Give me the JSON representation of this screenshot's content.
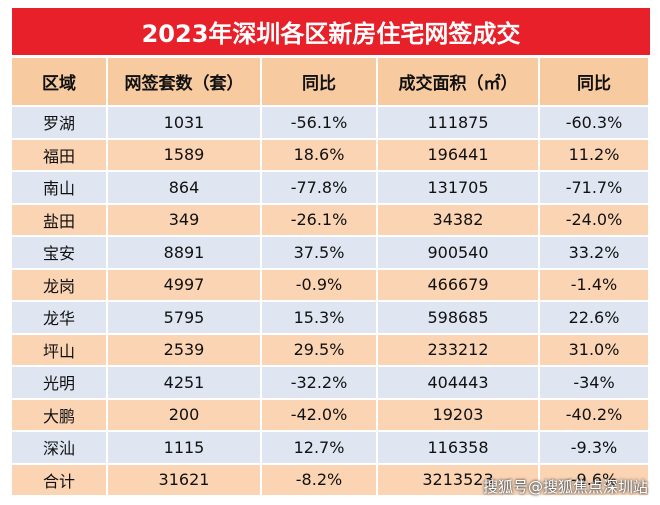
{
  "header": {
    "title": "2023年深圳各区新房住宅网签成交"
  },
  "table": {
    "columns": [
      "区域",
      "网签套数（套）",
      "同比",
      "成交面积（㎡）",
      "同比"
    ],
    "rows": [
      [
        "罗湖",
        "1031",
        "-56.1%",
        "111875",
        "-60.3%"
      ],
      [
        "福田",
        "1589",
        "18.6%",
        "196441",
        "11.2%"
      ],
      [
        "南山",
        "864",
        "-77.8%",
        "131705",
        "-71.7%"
      ],
      [
        "盐田",
        "349",
        "-26.1%",
        "34382",
        "-24.0%"
      ],
      [
        "宝安",
        "8891",
        "37.5%",
        "900540",
        "33.2%"
      ],
      [
        "龙岗",
        "4997",
        "-0.9%",
        "466679",
        "-1.4%"
      ],
      [
        "龙华",
        "5795",
        "15.3%",
        "598685",
        "22.6%"
      ],
      [
        "坪山",
        "2539",
        "29.5%",
        "233212",
        "31.0%"
      ],
      [
        "光明",
        "4251",
        "-32.2%",
        "404443",
        "-34%"
      ],
      [
        "大鹏",
        "200",
        "-42.0%",
        "19203",
        "-40.2%"
      ],
      [
        "深汕",
        "1115",
        "12.7%",
        "116358",
        "-9.3%"
      ],
      [
        "合计",
        "31621",
        "-8.2%",
        "3213523",
        "-9.6%"
      ]
    ]
  },
  "watermark": "搜狐号@搜狐焦点深圳站"
}
